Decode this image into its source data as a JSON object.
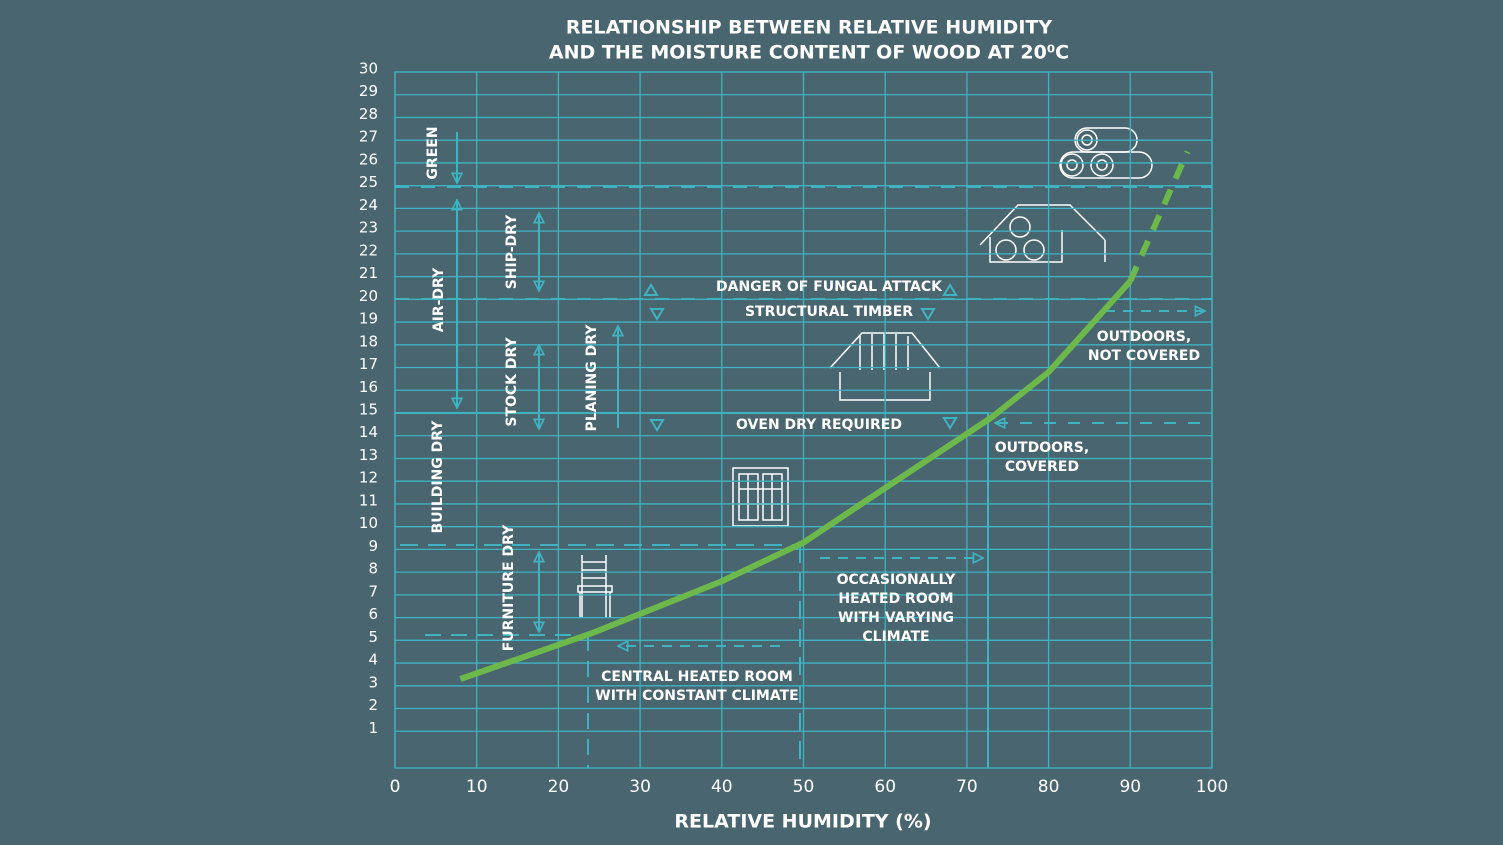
{
  "chart_data": {
    "type": "line",
    "title": [
      "RELATIONSHIP BETWEEN RELATIVE HUMIDITY",
      "AND THE MOISTURE CONTENT OF WOOD AT 20⁰C"
    ],
    "x_label": "RELATIVE HUMIDITY (%)",
    "x": [
      8,
      24,
      40,
      50,
      60,
      73,
      80,
      90,
      97
    ],
    "series": [
      {
        "color": "#6db84a",
        "style": "solid",
        "values": [
          3.3,
          5.3,
          7.6,
          9.3,
          11.7,
          14.8,
          16.8,
          20.8,
          null
        ]
      },
      {
        "color": "#6db84a",
        "style": "dashed",
        "values": [
          null,
          null,
          null,
          null,
          null,
          null,
          null,
          20.8,
          26.5
        ]
      }
    ],
    "xlim": [
      0,
      100
    ],
    "xticks": [
      0,
      10,
      20,
      30,
      40,
      50,
      60,
      70,
      80,
      90,
      100
    ],
    "ylim": [
      0,
      30
    ],
    "yticks": [
      1,
      2,
      3,
      4,
      5,
      6,
      7,
      8,
      9,
      10,
      11,
      12,
      13,
      14,
      15,
      16,
      17,
      18,
      19,
      20,
      21,
      22,
      23,
      24,
      25,
      26,
      27,
      28,
      29,
      30
    ],
    "grid": true,
    "annotations": [
      [
        "GREEN"
      ],
      [
        "AIR-DRY"
      ],
      [
        "SHIP-DRY"
      ],
      [
        "STOCK DRY"
      ],
      [
        "PLANING DRY"
      ],
      [
        "BUILDING DRY"
      ],
      [
        "FURNITURE DRY"
      ],
      [
        "DANGER OF FUNGAL ATTACK"
      ],
      [
        "STRUCTURAL TIMBER"
      ],
      [
        "OVEN DRY REQUIRED"
      ],
      [
        "OUTDOORS,",
        "NOT COVERED"
      ],
      [
        "OUTDOORS,",
        "COVERED"
      ],
      [
        "OCCASIONALLY",
        "HEATED ROOM",
        "WITH VARYING",
        "CLIMATE"
      ],
      [
        "CENTRAL HEATED ROOM",
        "WITH CONSTANT CLIMATE"
      ]
    ]
  }
}
